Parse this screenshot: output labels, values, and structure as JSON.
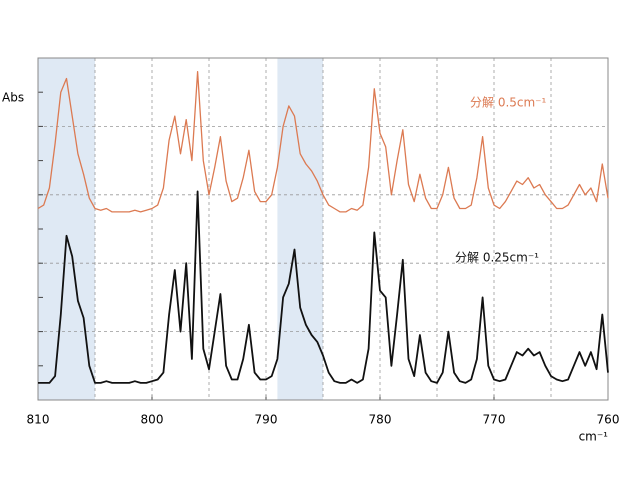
{
  "chart_data": {
    "type": "line",
    "y_label": "Abs",
    "x_label": "cm⁻¹",
    "xlim": [
      810,
      760
    ],
    "ylim": [
      0,
      10
    ],
    "xticks": [
      810,
      800,
      790,
      780,
      770,
      760
    ],
    "xgrid": [
      805,
      795,
      785,
      775,
      765
    ],
    "yticks": [
      1,
      2,
      3,
      4,
      5,
      6,
      7,
      8,
      9
    ],
    "grid": true,
    "highlight": [
      [
        810,
        805
      ],
      [
        789,
        785
      ]
    ],
    "x": [
      810,
      809.5,
      809,
      808.5,
      808,
      807.5,
      807,
      806.5,
      806,
      805.5,
      805,
      804.5,
      804,
      803.5,
      803,
      802.5,
      802,
      801.5,
      801,
      800.5,
      800,
      799.5,
      799,
      798.5,
      798,
      797.5,
      797,
      796.5,
      796,
      795.5,
      795,
      794.5,
      794,
      793.5,
      793,
      792.5,
      792,
      791.5,
      791,
      790.5,
      790,
      789.5,
      789,
      788.5,
      788,
      787.5,
      787,
      786.5,
      786,
      785.5,
      785,
      784.5,
      784,
      783.5,
      783,
      782.5,
      782,
      781.5,
      781,
      780.5,
      780,
      779.5,
      779,
      778.5,
      778,
      777.5,
      777,
      776.5,
      776,
      775.5,
      775,
      774.5,
      774,
      773.5,
      773,
      772.5,
      772,
      771.5,
      771,
      770.5,
      770,
      769.5,
      769,
      768.5,
      768,
      767.5,
      767,
      766.5,
      766,
      765.5,
      765,
      764.5,
      764,
      763.5,
      763,
      762.5,
      762,
      761.5,
      761,
      760.5,
      760
    ],
    "series": [
      {
        "name": "分解 0.5cm⁻¹",
        "color": "#dc7a52",
        "values": [
          5.6,
          5.7,
          6.2,
          7.5,
          9.0,
          9.4,
          8.3,
          7.2,
          6.6,
          5.9,
          5.6,
          5.55,
          5.6,
          5.5,
          5.5,
          5.5,
          5.5,
          5.55,
          5.5,
          5.55,
          5.6,
          5.7,
          6.2,
          7.6,
          8.3,
          7.2,
          8.2,
          7.0,
          9.6,
          7.0,
          6.0,
          6.8,
          7.7,
          6.4,
          5.8,
          5.9,
          6.5,
          7.3,
          6.1,
          5.8,
          5.8,
          6.0,
          6.8,
          8.0,
          8.6,
          8.3,
          7.2,
          6.9,
          6.7,
          6.4,
          6.0,
          5.7,
          5.6,
          5.5,
          5.5,
          5.6,
          5.55,
          5.7,
          6.8,
          9.1,
          7.8,
          7.4,
          6.0,
          7.0,
          7.9,
          6.3,
          5.8,
          6.6,
          5.9,
          5.6,
          5.6,
          6.0,
          6.8,
          5.9,
          5.6,
          5.6,
          5.7,
          6.5,
          7.7,
          6.2,
          5.7,
          5.6,
          5.8,
          6.1,
          6.4,
          6.3,
          6.5,
          6.2,
          6.3,
          6.0,
          5.8,
          5.6,
          5.6,
          5.7,
          6.0,
          6.3,
          6.0,
          6.2,
          5.8,
          6.9,
          5.9
        ]
      },
      {
        "name": "分解 0.25cm⁻¹",
        "color": "#111111",
        "values": [
          0.5,
          0.5,
          0.5,
          0.7,
          2.5,
          4.8,
          4.2,
          2.9,
          2.4,
          1.0,
          0.5,
          0.5,
          0.55,
          0.5,
          0.5,
          0.5,
          0.5,
          0.55,
          0.5,
          0.5,
          0.55,
          0.6,
          0.8,
          2.5,
          3.8,
          2.0,
          4.0,
          1.2,
          6.1,
          1.5,
          0.9,
          2.0,
          3.1,
          1.0,
          0.6,
          0.6,
          1.2,
          2.2,
          0.8,
          0.6,
          0.6,
          0.7,
          1.2,
          3.0,
          3.4,
          4.4,
          2.7,
          2.2,
          1.9,
          1.7,
          1.3,
          0.8,
          0.55,
          0.5,
          0.5,
          0.6,
          0.5,
          0.6,
          1.5,
          4.9,
          3.2,
          3.0,
          1.0,
          2.5,
          4.1,
          1.2,
          0.7,
          1.9,
          0.8,
          0.55,
          0.5,
          0.8,
          2.0,
          0.8,
          0.55,
          0.5,
          0.6,
          1.2,
          3.0,
          1.0,
          0.6,
          0.55,
          0.6,
          1.0,
          1.4,
          1.3,
          1.5,
          1.3,
          1.4,
          1.0,
          0.7,
          0.6,
          0.55,
          0.6,
          1.0,
          1.4,
          1.0,
          1.4,
          0.9,
          2.5,
          0.8
        ]
      }
    ]
  }
}
